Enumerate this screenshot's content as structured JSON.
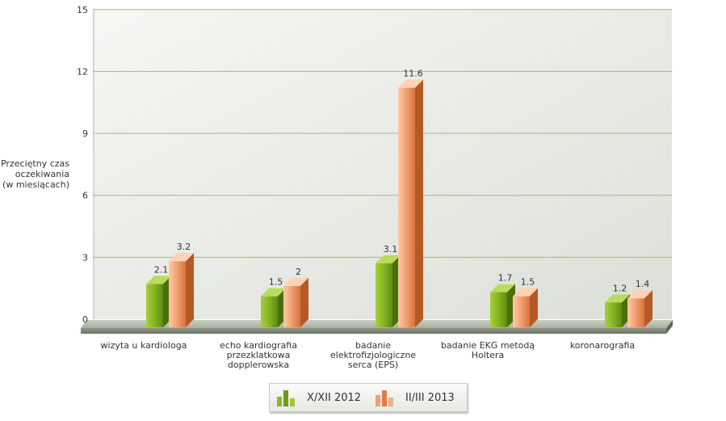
{
  "chart_data": {
    "type": "bar",
    "categories": [
      "wizyta u kardiologa",
      "echo kardiografia przezklatkowa dopplerowska",
      "badanie elektrofizjologiczne serca (EPS)",
      "badanie EKG metodą Holtera",
      "koronarografia"
    ],
    "category_lines": [
      [
        "wizyta u kardiologa"
      ],
      [
        "echo kardiografia",
        "przezklatkowa",
        "dopplerowska"
      ],
      [
        "badanie",
        "elektrofizjologiczne",
        "serca (EPS)"
      ],
      [
        "badanie EKG metodą",
        "Holtera"
      ],
      [
        "koronarografia"
      ]
    ],
    "series": [
      {
        "name": "X/XII 2012",
        "values": [
          2.1,
          1.5,
          3.1,
          1.7,
          1.2
        ],
        "value_labels": [
          "2.1",
          "1.5",
          "3.1",
          "1.7",
          "1.2"
        ],
        "color": "#7aa51a"
      },
      {
        "name": "II/III 2013",
        "values": [
          3.2,
          2,
          11.6,
          1.5,
          1.4
        ],
        "value_labels": [
          "3.2",
          "2",
          "11.6",
          "1.5",
          "1.4"
        ],
        "color": "#e8895a"
      }
    ],
    "ylabel_lines": [
      "Przeciętny czas",
      "oczekiwania",
      "(w miesiącach)"
    ],
    "ylabel": "Przeciętny czas oczekiwania (w miesiącach)",
    "xlabel": "",
    "ylim": [
      0,
      15
    ],
    "yticks": [
      "0",
      "3",
      "6",
      "9",
      "12",
      "15"
    ],
    "grid": true,
    "legend_position": "bottom-center",
    "style": "3d-column"
  }
}
